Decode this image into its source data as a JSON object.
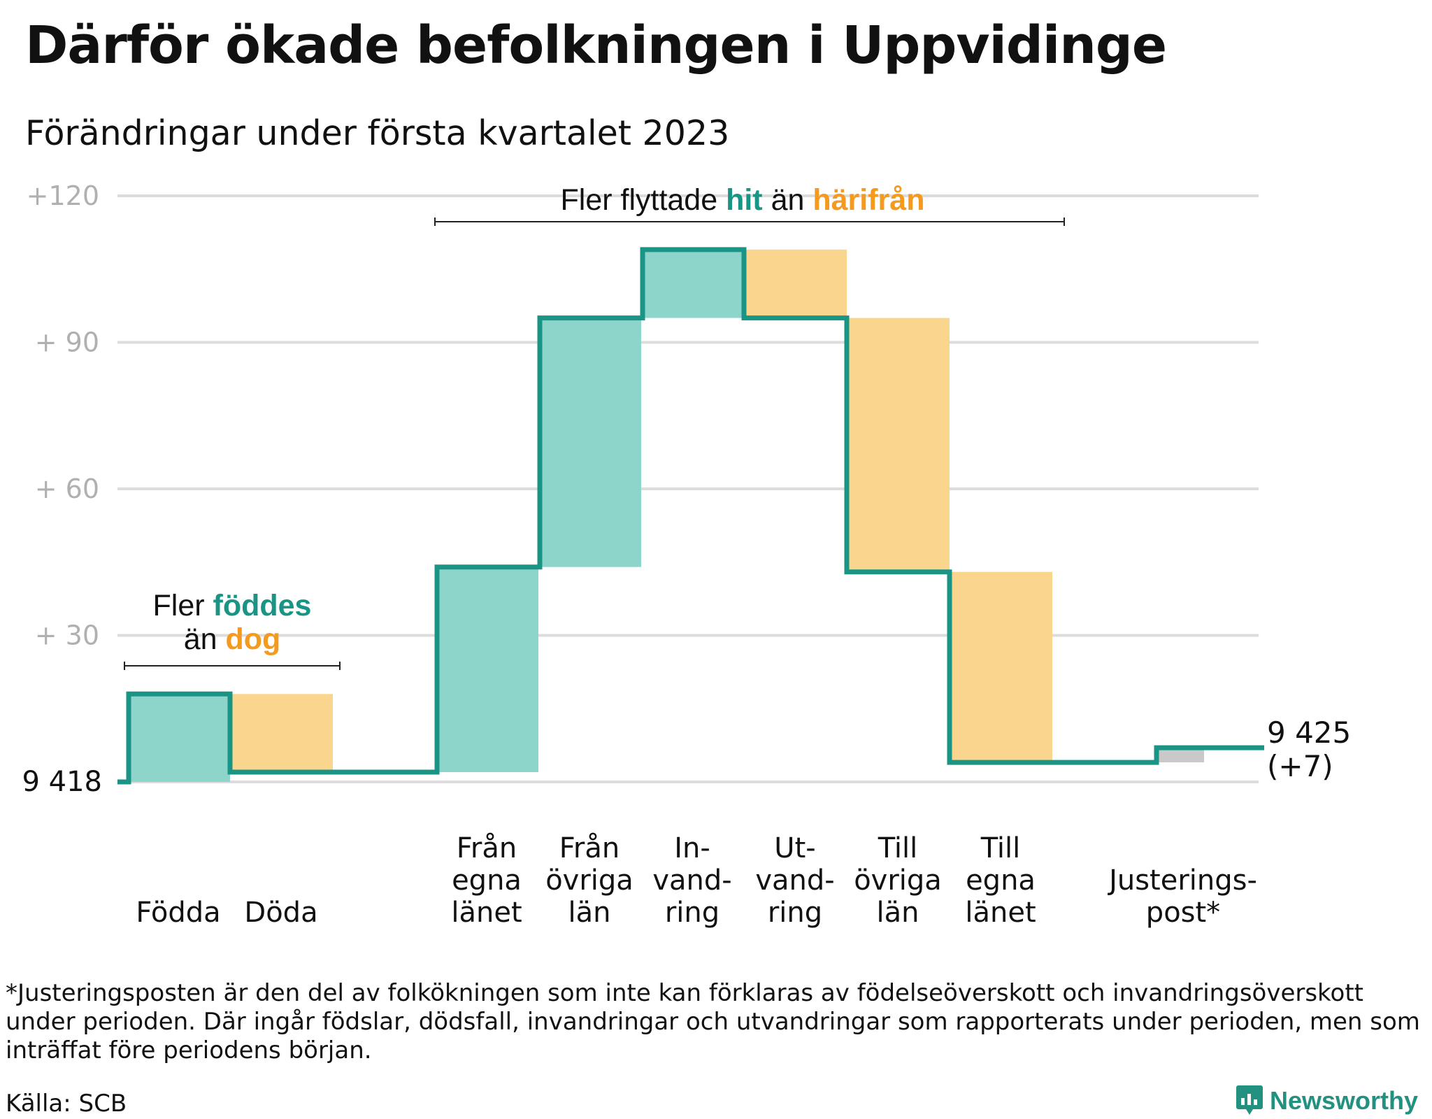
{
  "title": "Därför ökade befolkningen i Uppvidinge",
  "subtitle": "Förändringar under första kvartalet 2023",
  "colors": {
    "increase_fill": "#8dd4cb",
    "decrease_fill": "#fad58d",
    "line": "#1a9585",
    "adjust_fill": "#c9c9c9",
    "grid": "#dcdcdc",
    "teal_text": "#1a9585",
    "orange_text": "#f39a1f"
  },
  "chart_data": {
    "type": "waterfall",
    "start_value": 9418,
    "start_label": "9 418",
    "end_value": 9425,
    "end_label": "9 425",
    "end_change_label": "(+7)",
    "y_axis": {
      "ticks": [
        0,
        30,
        60,
        90,
        120
      ],
      "tick_labels": [
        "",
        "+ 30",
        "+ 60",
        "+ 90",
        "+120"
      ],
      "range": [
        0,
        120
      ],
      "grid": true
    },
    "steps": [
      {
        "label_lines": [
          "Födda"
        ],
        "change": 18,
        "from": 0,
        "to": 18,
        "type": "increase"
      },
      {
        "label_lines": [
          "Döda"
        ],
        "change": -16,
        "from": 18,
        "to": 2,
        "type": "decrease"
      },
      {
        "label_lines": [
          "Från",
          "egna",
          "länet"
        ],
        "change": 42,
        "from": 2,
        "to": 44,
        "type": "increase"
      },
      {
        "label_lines": [
          "Från",
          "övriga",
          "län"
        ],
        "change": 51,
        "from": 44,
        "to": 95,
        "type": "increase"
      },
      {
        "label_lines": [
          "In-",
          "vand-",
          "ring"
        ],
        "change": 14,
        "from": 95,
        "to": 109,
        "type": "increase"
      },
      {
        "label_lines": [
          "Ut-",
          "vand-",
          "ring"
        ],
        "change": -14,
        "from": 109,
        "to": 95,
        "type": "decrease"
      },
      {
        "label_lines": [
          "Till",
          "övriga",
          "län"
        ],
        "change": -52,
        "from": 95,
        "to": 43,
        "type": "decrease"
      },
      {
        "label_lines": [
          "Till",
          "egna",
          "länet"
        ],
        "change": -39,
        "from": 43,
        "to": 4,
        "type": "decrease"
      },
      {
        "label_lines": [
          "Justerings-",
          "post*"
        ],
        "change": 3,
        "from": 4,
        "to": 7,
        "type": "adjustment"
      }
    ],
    "annotations": {
      "births": {
        "line1_prefix": "Fler ",
        "line1_highlight": "föddes",
        "line2_prefix": "än ",
        "line2_highlight": "dog"
      },
      "migration": {
        "prefix": "Fler flyttade ",
        "highlight1": "hit",
        "middle": " än ",
        "highlight2": "härifrån"
      }
    }
  },
  "footnote": "*Justeringsposten är den del av folkökningen som inte kan förklaras av födelseöverskott och invandringsöverskott under perioden. Där ingår födslar, dödsfall, invandringar och utvandringar som rapporterats under perioden, men som inträffat före periodens början.",
  "source": "Källa: SCB",
  "brand": "Newsworthy"
}
